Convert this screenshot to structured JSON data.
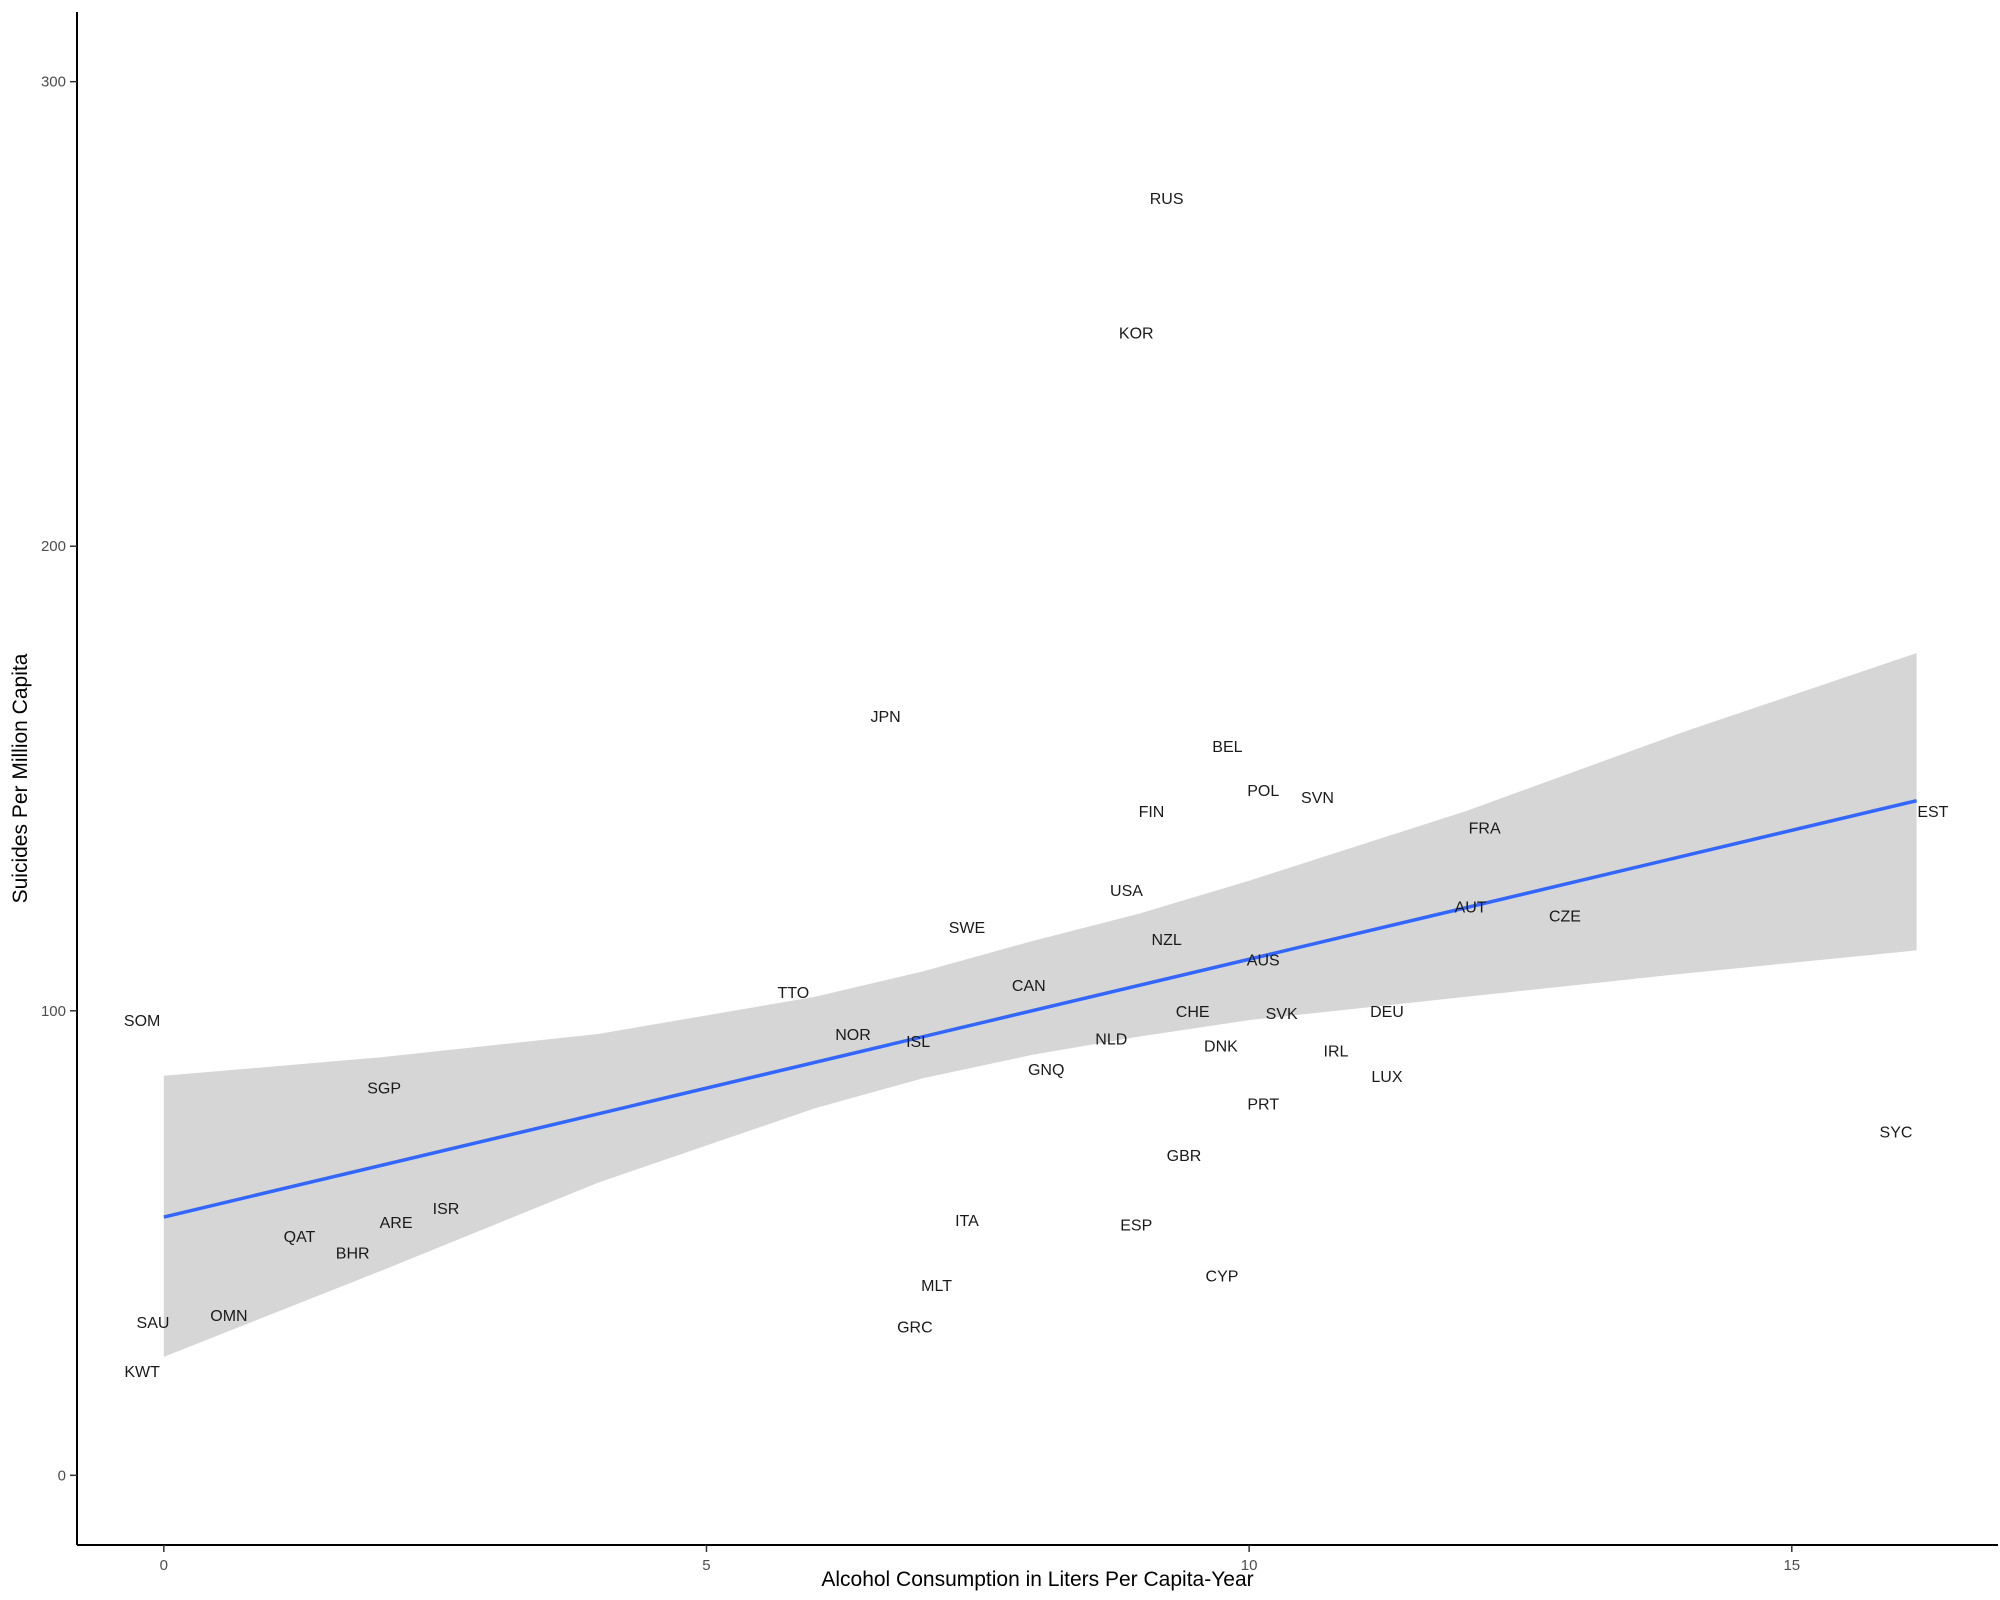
{
  "chart_data": {
    "type": "scatter",
    "xlabel": "Alcohol Consumption in Liters Per Capita-Year",
    "ylabel": "Suicides Per Million Capita",
    "xlim": [
      -0.8,
      16.9
    ],
    "ylim": [
      -15,
      315
    ],
    "x_ticks": [
      0,
      5,
      10,
      15
    ],
    "y_ticks": [
      0,
      100,
      200,
      300
    ],
    "grid": false,
    "legend": "none",
    "colors": {
      "trend_line": "#3366FF",
      "confidence_band": "#D6D6D6",
      "axis": "#000000",
      "tick_text": "#4d4d4d",
      "label_text": "#1a1a1a"
    },
    "trend": {
      "x_range": [
        0,
        16.15
      ],
      "intercept": 55.6,
      "slope": 5.55,
      "ci_lower": [
        [
          0,
          25.5
        ],
        [
          2,
          44
        ],
        [
          4,
          63
        ],
        [
          6,
          79
        ],
        [
          7,
          85.5
        ],
        [
          8,
          90.5
        ],
        [
          9,
          94.5
        ],
        [
          10,
          98
        ],
        [
          12,
          103
        ],
        [
          14,
          108
        ],
        [
          16.15,
          113
        ]
      ],
      "ci_upper": [
        [
          0,
          86
        ],
        [
          2,
          90
        ],
        [
          4,
          95
        ],
        [
          6,
          103
        ],
        [
          7,
          108.5
        ],
        [
          8,
          115
        ],
        [
          9,
          121
        ],
        [
          10,
          128
        ],
        [
          12,
          143
        ],
        [
          14,
          160
        ],
        [
          16.15,
          177
        ]
      ]
    },
    "points": [
      {
        "label": "SOM",
        "x": -0.2,
        "y": 98
      },
      {
        "label": "SAU",
        "x": -0.1,
        "y": 33
      },
      {
        "label": "KWT",
        "x": -0.2,
        "y": 22.5
      },
      {
        "label": "OMN",
        "x": 0.6,
        "y": 34.5
      },
      {
        "label": "QAT",
        "x": 1.25,
        "y": 51.5
      },
      {
        "label": "BHR",
        "x": 1.74,
        "y": 48
      },
      {
        "label": "ARE",
        "x": 2.14,
        "y": 54.5
      },
      {
        "label": "ISR",
        "x": 2.6,
        "y": 57.5
      },
      {
        "label": "SGP",
        "x": 2.03,
        "y": 83.5
      },
      {
        "label": "TTO",
        "x": 5.8,
        "y": 104
      },
      {
        "label": "NOR",
        "x": 6.35,
        "y": 95
      },
      {
        "label": "ISL",
        "x": 6.95,
        "y": 93.5
      },
      {
        "label": "JPN",
        "x": 6.65,
        "y": 163.5
      },
      {
        "label": "SWE",
        "x": 7.4,
        "y": 118
      },
      {
        "label": "ITA",
        "x": 7.4,
        "y": 55
      },
      {
        "label": "MLT",
        "x": 7.12,
        "y": 41
      },
      {
        "label": "GRC",
        "x": 6.92,
        "y": 32
      },
      {
        "label": "CAN",
        "x": 7.97,
        "y": 105.5
      },
      {
        "label": "GNQ",
        "x": 8.13,
        "y": 87.5
      },
      {
        "label": "NLD",
        "x": 8.73,
        "y": 94
      },
      {
        "label": "USA",
        "x": 8.87,
        "y": 126
      },
      {
        "label": "KOR",
        "x": 8.96,
        "y": 246
      },
      {
        "label": "RUS",
        "x": 9.24,
        "y": 275
      },
      {
        "label": "FIN",
        "x": 9.1,
        "y": 143
      },
      {
        "label": "NZL",
        "x": 9.24,
        "y": 115.5
      },
      {
        "label": "ESP",
        "x": 8.96,
        "y": 54
      },
      {
        "label": "GBR",
        "x": 9.4,
        "y": 69
      },
      {
        "label": "CHE",
        "x": 9.48,
        "y": 100
      },
      {
        "label": "DNK",
        "x": 9.74,
        "y": 92.5
      },
      {
        "label": "CYP",
        "x": 9.75,
        "y": 43
      },
      {
        "label": "BEL",
        "x": 9.8,
        "y": 157
      },
      {
        "label": "AUS",
        "x": 10.13,
        "y": 111
      },
      {
        "label": "PRT",
        "x": 10.13,
        "y": 80
      },
      {
        "label": "POL",
        "x": 10.13,
        "y": 147.5
      },
      {
        "label": "SVK",
        "x": 10.3,
        "y": 99.5
      },
      {
        "label": "SVN",
        "x": 10.63,
        "y": 146
      },
      {
        "label": "IRL",
        "x": 10.8,
        "y": 91.5
      },
      {
        "label": "DEU",
        "x": 11.27,
        "y": 100
      },
      {
        "label": "LUX",
        "x": 11.27,
        "y": 86
      },
      {
        "label": "AUT",
        "x": 12.04,
        "y": 122.5
      },
      {
        "label": "FRA",
        "x": 12.17,
        "y": 139.5
      },
      {
        "label": "CZE",
        "x": 12.91,
        "y": 120.5
      },
      {
        "label": "SYC",
        "x": 15.96,
        "y": 74
      },
      {
        "label": "EST",
        "x": 16.3,
        "y": 143
      }
    ]
  }
}
